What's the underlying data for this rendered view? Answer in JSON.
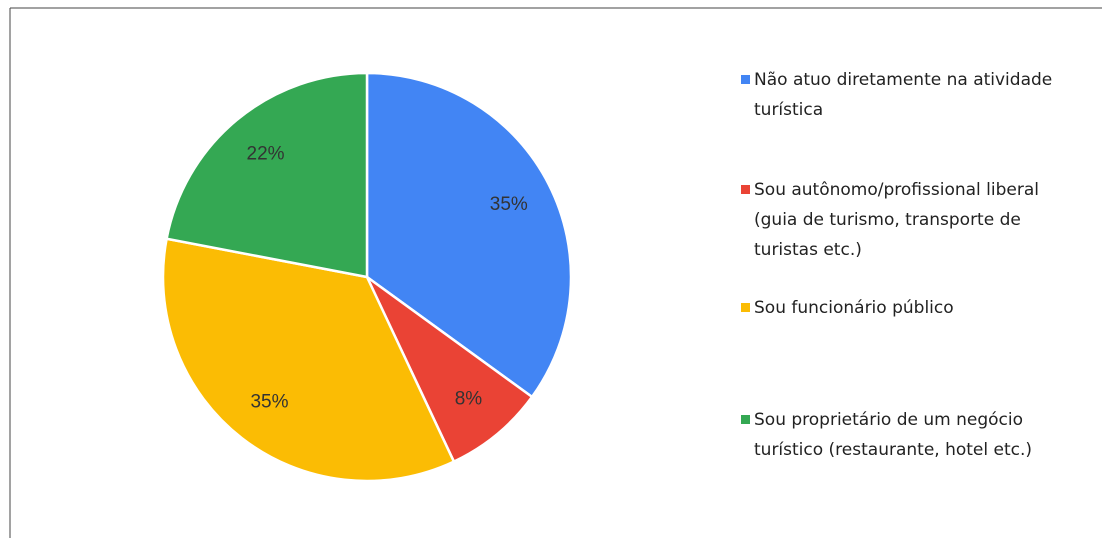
{
  "chart_data": {
    "type": "pie",
    "categories": [
      "Não atuo diretamente na atividade turística",
      "Sou autônomo/profissional liberal (guia de turismo, transporte de turistas etc.)",
      "Sou funcionário público",
      "Sou proprietário de um negócio turístico (restaurante, hotel etc.)"
    ],
    "values": [
      35,
      8,
      35,
      22
    ],
    "value_labels": [
      "35%",
      "8%",
      "35%",
      "22%"
    ],
    "colors": [
      "#4285f4",
      "#ea4335",
      "#fbbc04",
      "#34a853"
    ]
  }
}
